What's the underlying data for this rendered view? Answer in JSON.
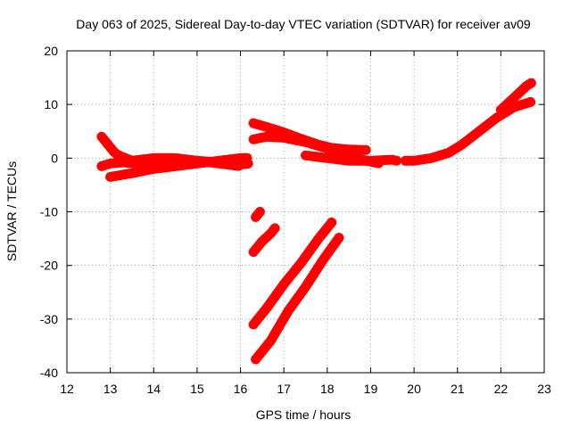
{
  "chart_data": {
    "type": "scatter",
    "title": "Day 063 of 2025, Sidereal Day-to-day VTEC variation (SDTVAR) for receiver av09",
    "xlabel": "GPS time / hours",
    "ylabel": "SDTVAR / TECUs",
    "xlim": [
      12,
      23
    ],
    "ylim": [
      -40,
      20
    ],
    "xticks": [
      12,
      13,
      14,
      15,
      16,
      17,
      18,
      19,
      20,
      21,
      22,
      23
    ],
    "yticks": [
      -40,
      -30,
      -20,
      -10,
      0,
      10,
      20
    ],
    "grid": true,
    "color": "#ff0000",
    "series": [
      {
        "name": "arc-1",
        "x": [
          12.8,
          12.9,
          13.0,
          13.1,
          13.2,
          13.35,
          13.5
        ],
        "y": [
          4,
          3,
          2,
          1,
          0.5,
          0,
          -0.5
        ]
      },
      {
        "name": "arc-2",
        "x": [
          12.8,
          13.0,
          13.3,
          13.6,
          14.0,
          14.5,
          15.0,
          15.5,
          16.0,
          16.2
        ],
        "y": [
          -1.5,
          -1,
          -0.8,
          -1,
          -0.5,
          -0.2,
          -0.5,
          -0.8,
          -1.2,
          -1
        ]
      },
      {
        "name": "arc-3",
        "x": [
          13.0,
          13.5,
          14.0,
          14.5,
          15.0,
          15.5,
          16.0,
          16.2
        ],
        "y": [
          -3.5,
          -2.8,
          -2,
          -1.5,
          -1,
          -0.5,
          0,
          0
        ]
      },
      {
        "name": "arc-4",
        "x": [
          13.5,
          14.0,
          14.5,
          15.0,
          15.5,
          16.0
        ],
        "y": [
          -0.5,
          0,
          0,
          -0.5,
          -1,
          -1.5
        ]
      },
      {
        "name": "arc-5",
        "x": [
          16.3,
          16.6,
          17.0,
          17.4,
          17.8,
          18.1,
          18.5,
          18.9
        ],
        "y": [
          6.5,
          5.8,
          4.8,
          3.6,
          2.5,
          1.9,
          1.6,
          1.5
        ]
      },
      {
        "name": "arc-6",
        "x": [
          16.3,
          16.6,
          17.0,
          17.5,
          18.0,
          18.5,
          18.9,
          19.2
        ],
        "y": [
          3.5,
          4,
          3.8,
          3,
          1.8,
          0.5,
          -0.5,
          -1
        ]
      },
      {
        "name": "arc-7",
        "x": [
          17.5,
          18.0,
          18.5,
          19.0,
          19.5,
          19.6
        ],
        "y": [
          0.5,
          0,
          -0.5,
          -0.5,
          -0.3,
          -0.5
        ]
      },
      {
        "name": "arc-8",
        "x": [
          19.8,
          20.0,
          20.4,
          20.8,
          21.1,
          21.5,
          21.9,
          22.3,
          22.7
        ],
        "y": [
          -0.5,
          -0.5,
          0,
          1,
          2.5,
          5,
          7.5,
          9.5,
          10.5
        ]
      },
      {
        "name": "arc-9",
        "x": [
          22.0,
          22.2,
          22.4,
          22.6,
          22.7
        ],
        "y": [
          9,
          10.5,
          12,
          13.5,
          14
        ]
      },
      {
        "name": "arc-10",
        "x": [
          16.35,
          16.45
        ],
        "y": [
          -11,
          -10
        ]
      },
      {
        "name": "arc-11",
        "x": [
          16.3,
          16.5,
          16.7,
          16.8
        ],
        "y": [
          -17.5,
          -15.5,
          -14,
          -13
        ]
      },
      {
        "name": "arc-12",
        "x": [
          16.3,
          16.6,
          17.0,
          17.4,
          17.8,
          18.1
        ],
        "y": [
          -31,
          -28,
          -23.5,
          -19.5,
          -15,
          -12
        ]
      },
      {
        "name": "arc-13",
        "x": [
          16.35,
          16.7,
          17.1,
          17.5,
          17.9,
          18.3
        ],
        "y": [
          -37.5,
          -34,
          -28.5,
          -24,
          -19,
          -14.5
        ]
      }
    ]
  }
}
